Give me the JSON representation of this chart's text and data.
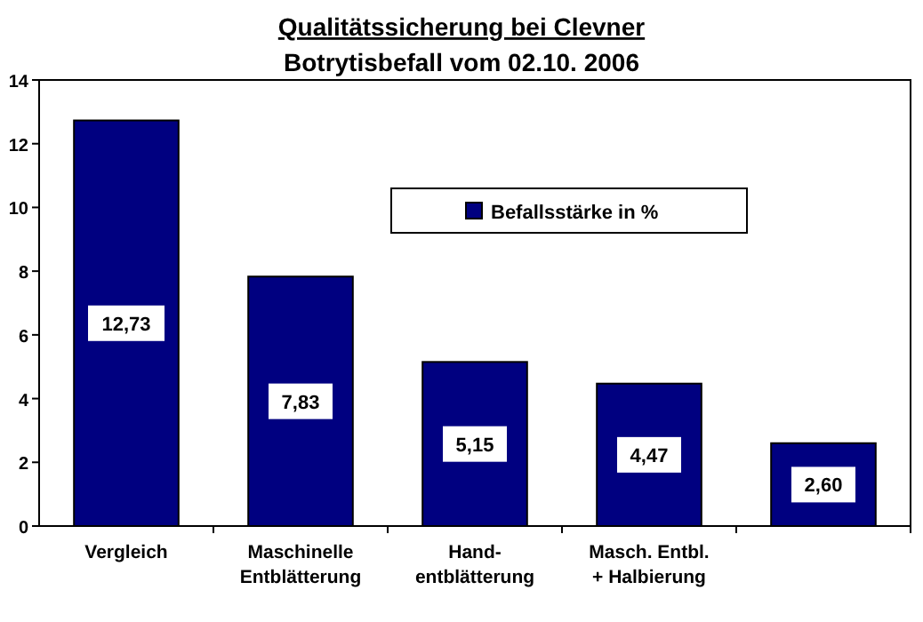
{
  "chart_data": {
    "type": "bar",
    "title": "Qualitätssicherung bei Clevner",
    "subtitle": "Botrytisbefall vom 02.10. 2006",
    "categories": [
      "Vergleich",
      "Maschinelle\nEntblätterung",
      "Hand-\nentblätterung",
      "Masch. Entbl.\n+ Halbierung",
      null
    ],
    "series": [
      {
        "name": "Befallsstärke in %",
        "color": "#000080",
        "values": [
          12.73,
          7.83,
          5.15,
          4.47,
          2.6
        ]
      }
    ],
    "value_labels": [
      "12,73",
      "7,83",
      "5,15",
      "4,47",
      "2,60"
    ],
    "ylim": [
      0,
      14
    ],
    "yticks": [
      0,
      2,
      4,
      6,
      8,
      10,
      12,
      14
    ],
    "grid": false,
    "legend": "top right"
  }
}
